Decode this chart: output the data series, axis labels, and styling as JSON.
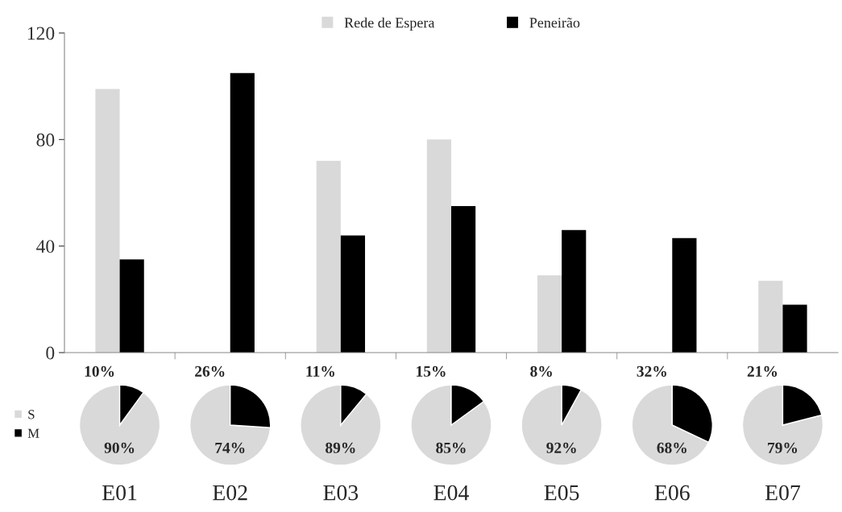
{
  "chart_data": [
    {
      "type": "bar",
      "categories": [
        "E01",
        "E02",
        "E03",
        "E04",
        "E05",
        "E06",
        "E07"
      ],
      "series": [
        {
          "name": "Rede de Espera",
          "color": "#d9d9d9",
          "values": [
            99,
            0,
            72,
            80,
            29,
            0,
            27
          ]
        },
        {
          "name": "Peneirão",
          "color": "#000000",
          "values": [
            35,
            105,
            44,
            55,
            46,
            43,
            18
          ]
        }
      ],
      "ylim": [
        0,
        120
      ],
      "yticks": [
        0,
        40,
        80,
        120
      ],
      "legend": "top",
      "grid": false
    },
    {
      "type": "pie",
      "categories": [
        "S",
        "M"
      ],
      "values": [
        90,
        10
      ],
      "value_labels": [
        "90%",
        "10%"
      ],
      "colors": [
        "#d9d9d9",
        "#000000"
      ],
      "legend": "left"
    },
    {
      "type": "pie",
      "values": [
        74,
        26
      ],
      "value_labels": [
        "74%",
        "26%"
      ],
      "colors": [
        "#d9d9d9",
        "#000000"
      ]
    },
    {
      "type": "pie",
      "values": [
        89,
        11
      ],
      "value_labels": [
        "89%",
        "11%"
      ],
      "colors": [
        "#d9d9d9",
        "#000000"
      ]
    },
    {
      "type": "pie",
      "values": [
        85,
        15
      ],
      "value_labels": [
        "85%",
        "15%"
      ],
      "colors": [
        "#d9d9d9",
        "#000000"
      ]
    },
    {
      "type": "pie",
      "values": [
        92,
        8
      ],
      "value_labels": [
        "92%",
        "8%"
      ],
      "colors": [
        "#d9d9d9",
        "#000000"
      ]
    },
    {
      "type": "pie",
      "values": [
        68,
        32
      ],
      "value_labels": [
        "68%",
        "32%"
      ],
      "colors": [
        "#d9d9d9",
        "#000000"
      ]
    },
    {
      "type": "pie",
      "values": [
        79,
        21
      ],
      "value_labels": [
        "79%",
        "21%"
      ],
      "colors": [
        "#d9d9d9",
        "#000000"
      ]
    }
  ]
}
